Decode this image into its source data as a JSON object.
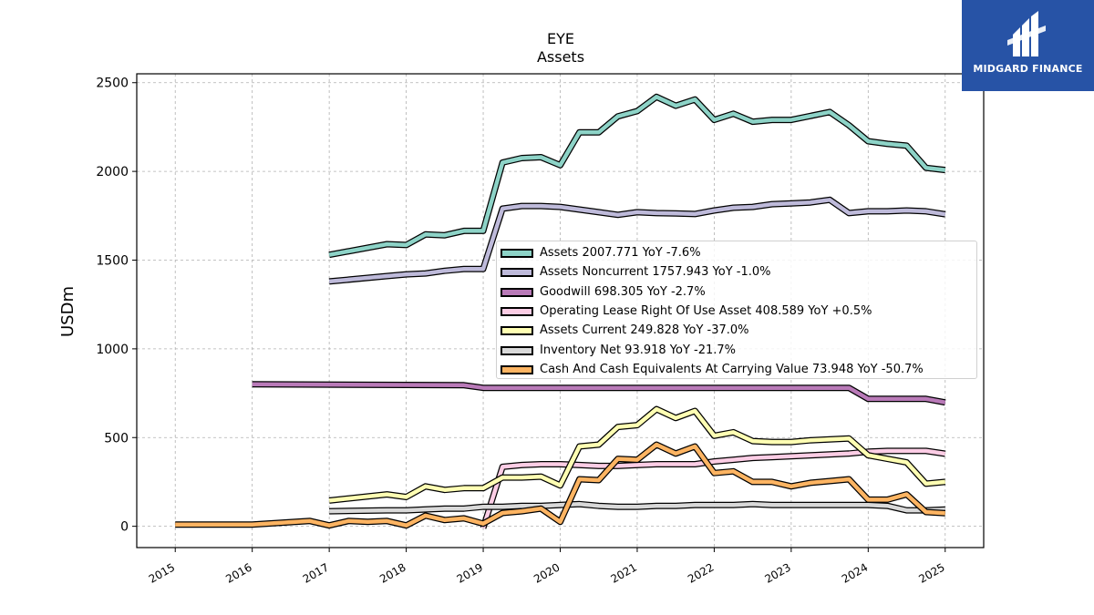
{
  "chart_data": {
    "type": "line",
    "title": "EYE",
    "subtitle": "Assets",
    "ylabel": "USDm",
    "xlabel": "",
    "ylim": [
      -120,
      2550
    ],
    "xlim": [
      2014.5,
      2025.5
    ],
    "x_ticks": [
      "2015",
      "2016",
      "2017",
      "2018",
      "2019",
      "2020",
      "2021",
      "2022",
      "2023",
      "2024",
      "2025"
    ],
    "y_ticks": [
      "0",
      "500",
      "1000",
      "1500",
      "2000",
      "2500"
    ],
    "grid": true,
    "legend_position": "center-right",
    "series": [
      {
        "name": "Assets  2007.771 YoY -7.6%",
        "color": "#8dd3c7",
        "x": [
          2017.0,
          2017.75,
          2018.0,
          2018.25,
          2018.5,
          2018.75,
          2019.0,
          2019.25,
          2019.5,
          2019.75,
          2020.0,
          2020.25,
          2020.5,
          2020.75,
          2021.0,
          2021.25,
          2021.5,
          2021.75,
          2022.0,
          2022.25,
          2022.5,
          2022.75,
          2023.0,
          2023.5,
          2023.75,
          2024.0,
          2024.25,
          2024.5,
          2024.75,
          2025.0
        ],
        "y": [
          1530,
          1590,
          1585,
          1645,
          1640,
          1665,
          1665,
          2050,
          2075,
          2080,
          2035,
          2220,
          2220,
          2310,
          2340,
          2420,
          2370,
          2405,
          2290,
          2325,
          2280,
          2290,
          2290,
          2335,
          2260,
          2170,
          2155,
          2145,
          2020,
          2008
        ]
      },
      {
        "name": "Assets Noncurrent  1757.943 YoY -1.0%",
        "color": "#bebada",
        "x": [
          2017.0,
          2017.75,
          2018.0,
          2018.25,
          2018.5,
          2018.75,
          2019.0,
          2019.25,
          2019.5,
          2019.75,
          2020.0,
          2020.25,
          2020.5,
          2020.75,
          2021.0,
          2021.25,
          2021.5,
          2021.75,
          2022.0,
          2022.25,
          2022.5,
          2022.75,
          2023.0,
          2023.25,
          2023.5,
          2023.75,
          2024.0,
          2024.25,
          2024.5,
          2024.75,
          2025.0
        ],
        "y": [
          1380,
          1410,
          1420,
          1425,
          1440,
          1450,
          1450,
          1790,
          1805,
          1805,
          1800,
          1785,
          1770,
          1755,
          1770,
          1765,
          1763,
          1760,
          1780,
          1795,
          1800,
          1815,
          1820,
          1825,
          1840,
          1765,
          1775,
          1775,
          1780,
          1775,
          1758
        ]
      },
      {
        "name": "Goodwill  698.305 YoY -2.7%",
        "color": "#b97ab8",
        "x": [
          2016.0,
          2018.75,
          2019.0,
          2023.5,
          2023.75,
          2024.0,
          2024.75,
          2025.0
        ],
        "y": [
          800,
          795,
          780,
          780,
          780,
          718,
          718,
          698
        ]
      },
      {
        "name": "Operating Lease Right Of Use Asset  408.589 YoY +0.5%",
        "color": "#fccde5",
        "x": [
          2019.0,
          2019.25,
          2019.5,
          2019.75,
          2020.0,
          2020.25,
          2020.5,
          2020.75,
          2021.0,
          2021.25,
          2021.5,
          2021.75,
          2022.0,
          2022.25,
          2022.5,
          2022.75,
          2023.0,
          2023.25,
          2023.5,
          2023.75,
          2024.0,
          2024.25,
          2024.5,
          2024.75,
          2025.0
        ],
        "y": [
          -10,
          335,
          345,
          350,
          350,
          345,
          340,
          340,
          345,
          350,
          350,
          350,
          365,
          375,
          385,
          390,
          395,
          400,
          405,
          410,
          420,
          425,
          425,
          425,
          409
        ]
      },
      {
        "name": "Assets Current  249.828 YoY -37.0%",
        "color": "#ffffb3",
        "x": [
          2017.0,
          2017.75,
          2018.0,
          2018.25,
          2018.5,
          2018.75,
          2019.0,
          2019.25,
          2019.5,
          2019.75,
          2020.0,
          2020.25,
          2020.5,
          2020.75,
          2021.0,
          2021.25,
          2021.5,
          2021.75,
          2022.0,
          2022.25,
          2022.5,
          2022.75,
          2023.0,
          2023.25,
          2023.5,
          2023.75,
          2024.0,
          2024.25,
          2024.5,
          2024.75,
          2025.0
        ],
        "y": [
          145,
          180,
          165,
          225,
          205,
          215,
          215,
          275,
          275,
          280,
          230,
          450,
          460,
          560,
          570,
          660,
          610,
          650,
          510,
          530,
          480,
          475,
          475,
          485,
          490,
          495,
          400,
          380,
          360,
          240,
          250
        ]
      },
      {
        "name": "Inventory Net  93.918 YoY -21.7%",
        "color": "#d9d9d9",
        "x": [
          2017.0,
          2017.75,
          2018.0,
          2018.25,
          2018.5,
          2018.75,
          2019.0,
          2019.25,
          2019.5,
          2019.75,
          2020.0,
          2020.25,
          2020.5,
          2020.75,
          2021.0,
          2021.25,
          2021.5,
          2021.75,
          2022.0,
          2022.25,
          2022.5,
          2022.75,
          2023.0,
          2023.25,
          2023.5,
          2023.75,
          2024.0,
          2024.25,
          2024.5,
          2024.75,
          2025.0
        ],
        "y": [
          85,
          90,
          90,
          95,
          100,
          100,
          110,
          110,
          115,
          115,
          120,
          125,
          115,
          110,
          110,
          115,
          115,
          120,
          120,
          120,
          125,
          120,
          120,
          120,
          120,
          120,
          120,
          115,
          90,
          90,
          94
        ]
      },
      {
        "name": "Cash And Cash Equivalents At Carrying Value  73.948 YoY -50.7%",
        "color": "#fdb462",
        "x": [
          2015.0,
          2016.0,
          2016.75,
          2017.0,
          2017.25,
          2017.5,
          2017.75,
          2018.0,
          2018.25,
          2018.5,
          2018.75,
          2019.0,
          2019.25,
          2019.5,
          2019.75,
          2020.0,
          2020.25,
          2020.5,
          2020.75,
          2021.0,
          2021.25,
          2021.5,
          2021.75,
          2022.0,
          2022.25,
          2022.5,
          2022.75,
          2023.0,
          2023.25,
          2023.5,
          2023.75,
          2024.0,
          2024.25,
          2024.5,
          2024.75,
          2025.0
        ],
        "y": [
          10,
          10,
          30,
          5,
          30,
          25,
          30,
          5,
          60,
          35,
          45,
          15,
          75,
          85,
          100,
          25,
          265,
          260,
          380,
          375,
          460,
          410,
          450,
          300,
          310,
          250,
          250,
          225,
          245,
          255,
          265,
          150,
          150,
          180,
          80,
          74
        ]
      }
    ]
  },
  "logo": {
    "text": "MIDGARD FINANCE"
  }
}
